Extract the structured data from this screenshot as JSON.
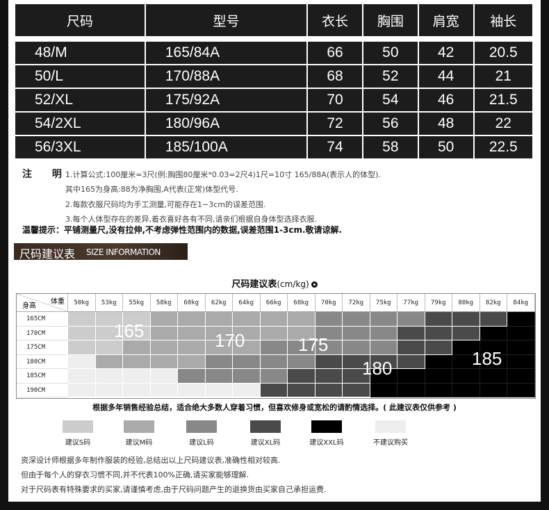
{
  "size_table": {
    "headers": [
      "尺码",
      "型号",
      "衣长",
      "胸围",
      "肩宽",
      "袖长"
    ],
    "rows": [
      [
        "48/M",
        "165/84A",
        "66",
        "50",
        "42",
        "20.5"
      ],
      [
        "50/L",
        "170/88A",
        "68",
        "52",
        "44",
        "21"
      ],
      [
        "52/XL",
        "175/92A",
        "70",
        "54",
        "46",
        "21.5"
      ],
      [
        "54/2XL",
        "180/96A",
        "72",
        "56",
        "48",
        "22"
      ],
      [
        "56/3XL",
        "185/100A",
        "74",
        "58",
        "50",
        "22.5"
      ]
    ]
  },
  "notes": {
    "title": "注 明",
    "lines": [
      "1.计算公式:100厘米=3尺(例:胸围80厘米*0.03=2尺4)1尺=10寸 165/88A(表示人的体型).",
      "其中165为身高:88为净胸围,A代表(正常)体型代号.",
      "2.每款衣服尺码均为手工测量,可能存在1−3cm的误差范围.",
      "3.每个人体型存在的差异,着衣喜好各有不同,请亲们根据自身体型选择衣服."
    ],
    "warm_tip": "温馨提示：平铺测量尺,没有拉伸,不考虑弹性范围内的数据,误差范围1-3cm.敬请谅解."
  },
  "banner": {
    "cn": "尺码建议表",
    "en": "SIZE INFORMATION"
  },
  "recommend": {
    "title": "尺码建议表",
    "unit": "(cm/kg)",
    "corner_weight": "体重",
    "corner_height": "身高",
    "weights": [
      "50kg",
      "53kg",
      "55kg",
      "58kg",
      "60kg",
      "62kg",
      "64kg",
      "66kg",
      "68kg",
      "70kg",
      "72kg",
      "75kg",
      "77kg",
      "79kg",
      "80kg",
      "82kg",
      "84kg"
    ],
    "heights": [
      "165CM",
      "170CM",
      "175CM",
      "180CM",
      "185CM",
      "190CM"
    ],
    "levels": [
      [
        1,
        1,
        1,
        2,
        2,
        2,
        2,
        2,
        2,
        3,
        3,
        3,
        3,
        4,
        4,
        4,
        5
      ],
      [
        1,
        1,
        1,
        2,
        2,
        2,
        2,
        2,
        2,
        3,
        3,
        3,
        4,
        4,
        4,
        5,
        5
      ],
      [
        1,
        1,
        2,
        2,
        2,
        2,
        2,
        3,
        3,
        3,
        3,
        3,
        4,
        4,
        5,
        5,
        5
      ],
      [
        0,
        2,
        2,
        2,
        2,
        3,
        3,
        3,
        3,
        4,
        4,
        4,
        4,
        5,
        5,
        5,
        5
      ],
      [
        0,
        0,
        0,
        0,
        3,
        3,
        3,
        3,
        4,
        4,
        4,
        5,
        5,
        5,
        5,
        5,
        5
      ],
      [
        0,
        0,
        0,
        0,
        0,
        0,
        0,
        4,
        4,
        4,
        4,
        5,
        5,
        5,
        5,
        5,
        5
      ]
    ],
    "big_labels": [
      "165",
      "170",
      "175",
      "180",
      "185"
    ],
    "colors": [
      "#eeeeee",
      "#cccccc",
      "#aaaaaa",
      "#888888",
      "#4a4a4a",
      "#000000"
    ],
    "caption": "根据多年销售经验总结，适合绝大多数人穿着习惯，但喜欢修身或宽松的请酌情选择。( 此建议表仅供参考 )"
  },
  "legend": [
    {
      "label": "建议S码",
      "color": "#cccccc"
    },
    {
      "label": "建议M码",
      "color": "#aaaaaa"
    },
    {
      "label": "建议L码",
      "color": "#888888"
    },
    {
      "label": "建议XL码",
      "color": "#4a4a4a"
    },
    {
      "label": "建议XXL码",
      "color": "#000000"
    },
    {
      "label": "不建议购买",
      "color": "#eeeeee"
    }
  ],
  "footer": [
    "资深设计师根据多年制作服装的经验,总结出以上尺码建议表,准确性相对较高.",
    "但由于每个人的穿衣习惯不同,并不代表100%正确,请买家能够理解.",
    "对于尺码表有特殊要求的买家,请谨慎考虑,由于尺码问题产生的退换货由买家自己承担运费."
  ]
}
